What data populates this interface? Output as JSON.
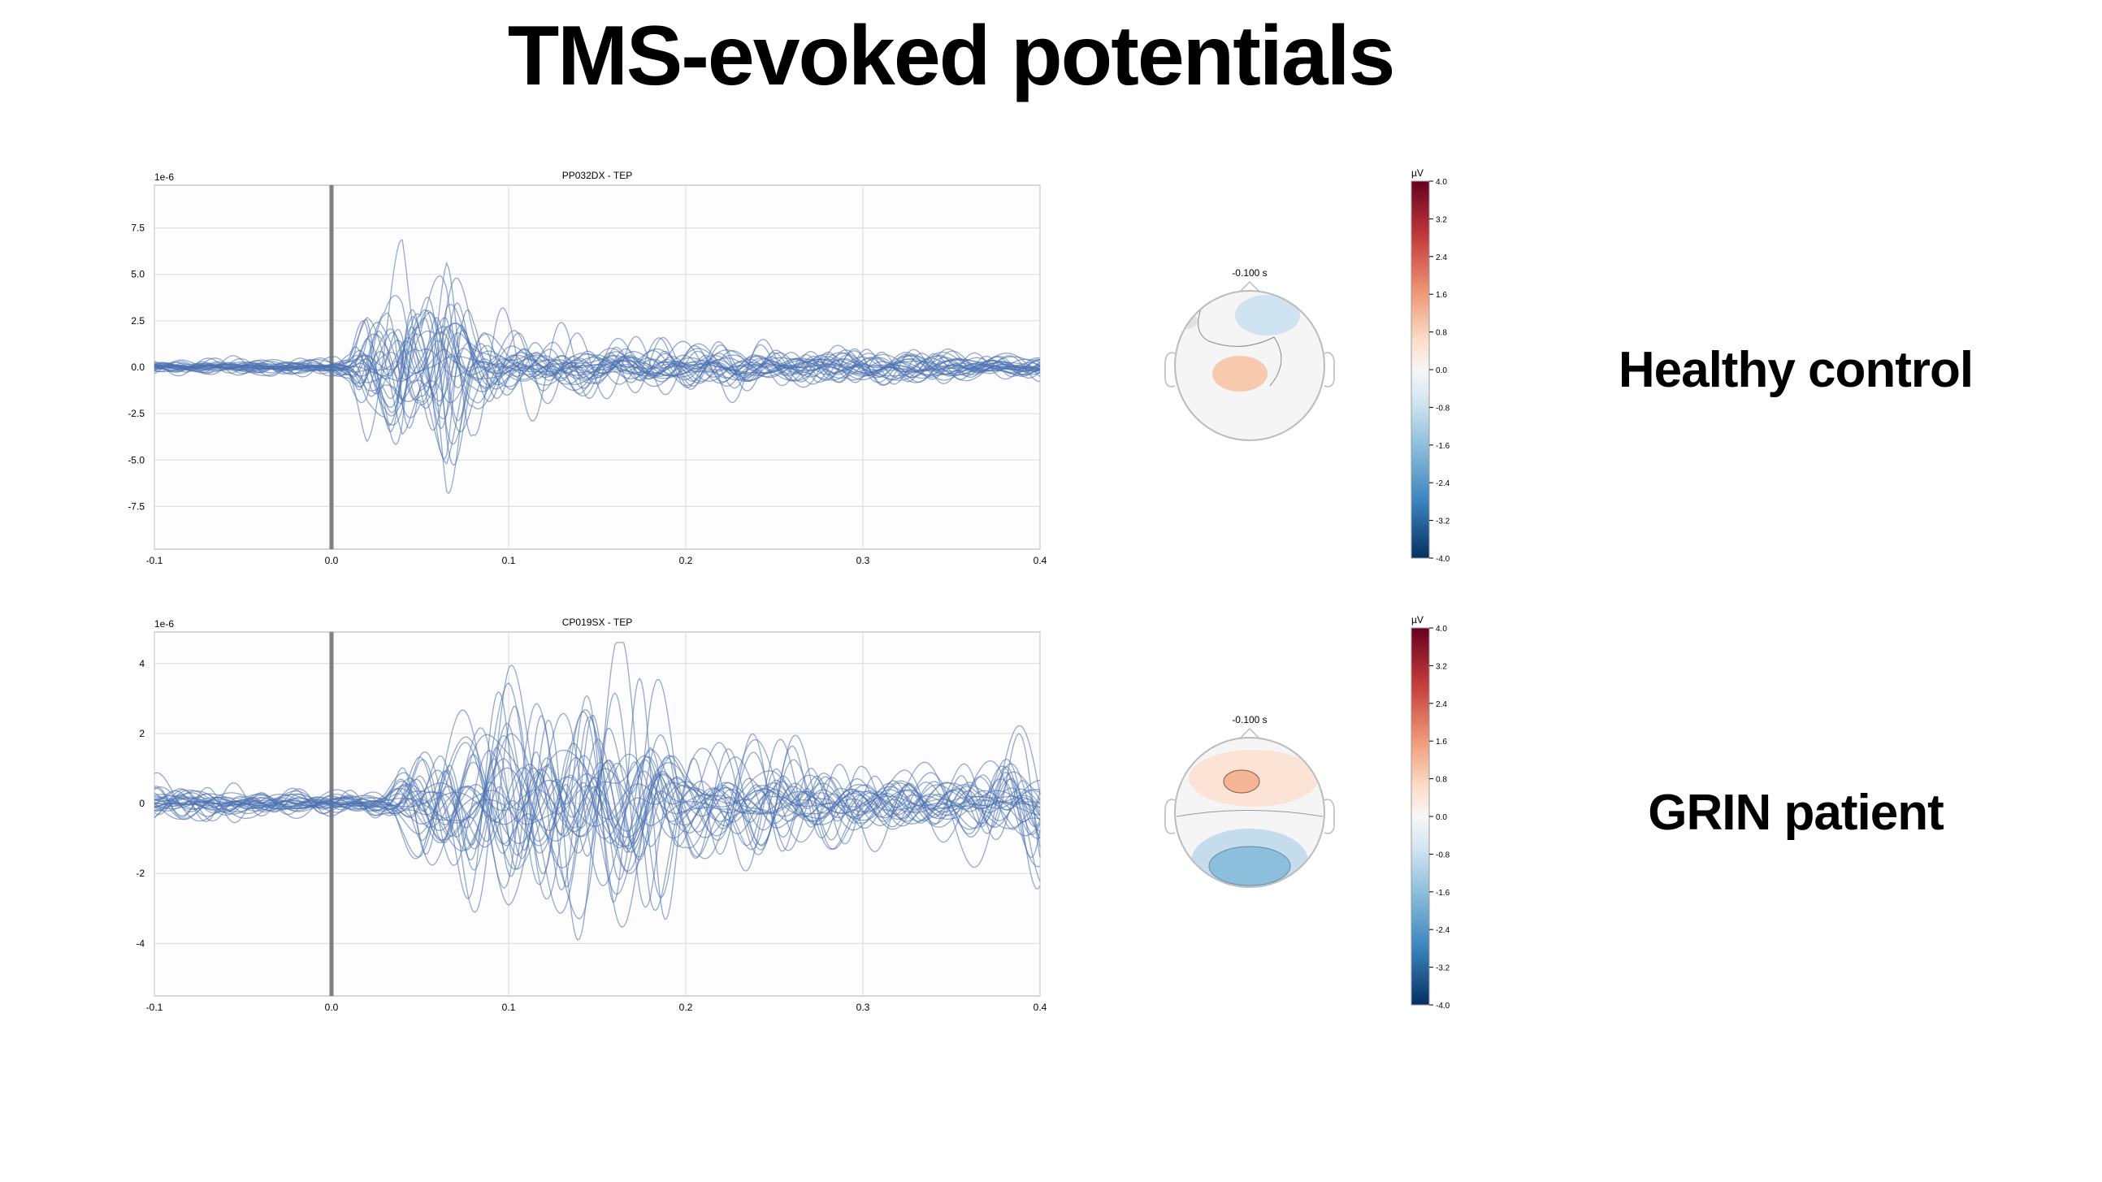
{
  "slide": {
    "title": "TMS-evoked potentials",
    "row_labels": [
      "Healthy control",
      "GRIN patient"
    ]
  },
  "chart_data": [
    {
      "type": "line",
      "title": "PP032DX - TEP",
      "offset_label": "1e-6",
      "x_ticks": [
        "-0.1",
        "0.0",
        "0.1",
        "0.2",
        "0.3",
        "0.4"
      ],
      "y_ticks": [
        "7.5",
        "5.0",
        "2.5",
        "0.0",
        "-2.5",
        "-5.0",
        "-7.5"
      ],
      "xlim": [
        -0.1,
        0.4
      ],
      "ylim": [
        -9.8,
        9.8
      ],
      "grid": true,
      "series_color": "#4c72b0",
      "stim_marker_x": 0.0,
      "n_channels": 30,
      "envelope": {
        "x": [
          -0.1,
          0.0,
          0.01,
          0.02,
          0.03,
          0.04,
          0.05,
          0.065,
          0.08,
          0.1,
          0.15,
          0.2,
          0.3,
          0.4
        ],
        "amp": [
          0.5,
          0.6,
          1.2,
          5.0,
          5.5,
          9.0,
          5.0,
          9.0,
          4.0,
          2.5,
          1.8,
          1.8,
          1.5,
          1.0
        ]
      }
    },
    {
      "type": "line",
      "title": "CP019SX - TEP",
      "offset_label": "1e-6",
      "x_ticks": [
        "-0.1",
        "0.0",
        "0.1",
        "0.2",
        "0.3",
        "0.4"
      ],
      "y_ticks": [
        "4",
        "2",
        "0",
        "-2",
        "-4"
      ],
      "xlim": [
        -0.1,
        0.4
      ],
      "ylim": [
        -5.5,
        4.9
      ],
      "grid": true,
      "series_color": "#4c72b0",
      "stim_marker_x": 0.0,
      "n_channels": 30,
      "envelope": {
        "x": [
          -0.1,
          0.0,
          0.03,
          0.05,
          0.1,
          0.13,
          0.18,
          0.2,
          0.25,
          0.3,
          0.35,
          0.4
        ],
        "amp": [
          0.8,
          0.4,
          0.6,
          2.5,
          4.8,
          4.5,
          4.8,
          2.5,
          2.5,
          1.3,
          1.3,
          3.0
        ]
      }
    }
  ],
  "topomaps": [
    {
      "time_label": "-0.100 s",
      "colorbar_unit": "µV",
      "colorbar_ticks": [
        "4.0",
        "3.2",
        "2.4",
        "1.6",
        "0.8",
        "0.0",
        "-0.8",
        "-1.6",
        "-2.4",
        "-3.2",
        "-4.0"
      ],
      "colors": {
        "positive": "#f7c9ae",
        "negative": "#cfe2ef"
      }
    },
    {
      "time_label": "-0.100 s",
      "colorbar_unit": "µV",
      "colorbar_ticks": [
        "4.0",
        "3.2",
        "2.4",
        "1.6",
        "0.8",
        "0.0",
        "-0.8",
        "-1.6",
        "-2.4",
        "-3.2",
        "-4.0"
      ],
      "colors": {
        "positive": "#f3b596",
        "negative": "#8bbfdc"
      }
    }
  ]
}
